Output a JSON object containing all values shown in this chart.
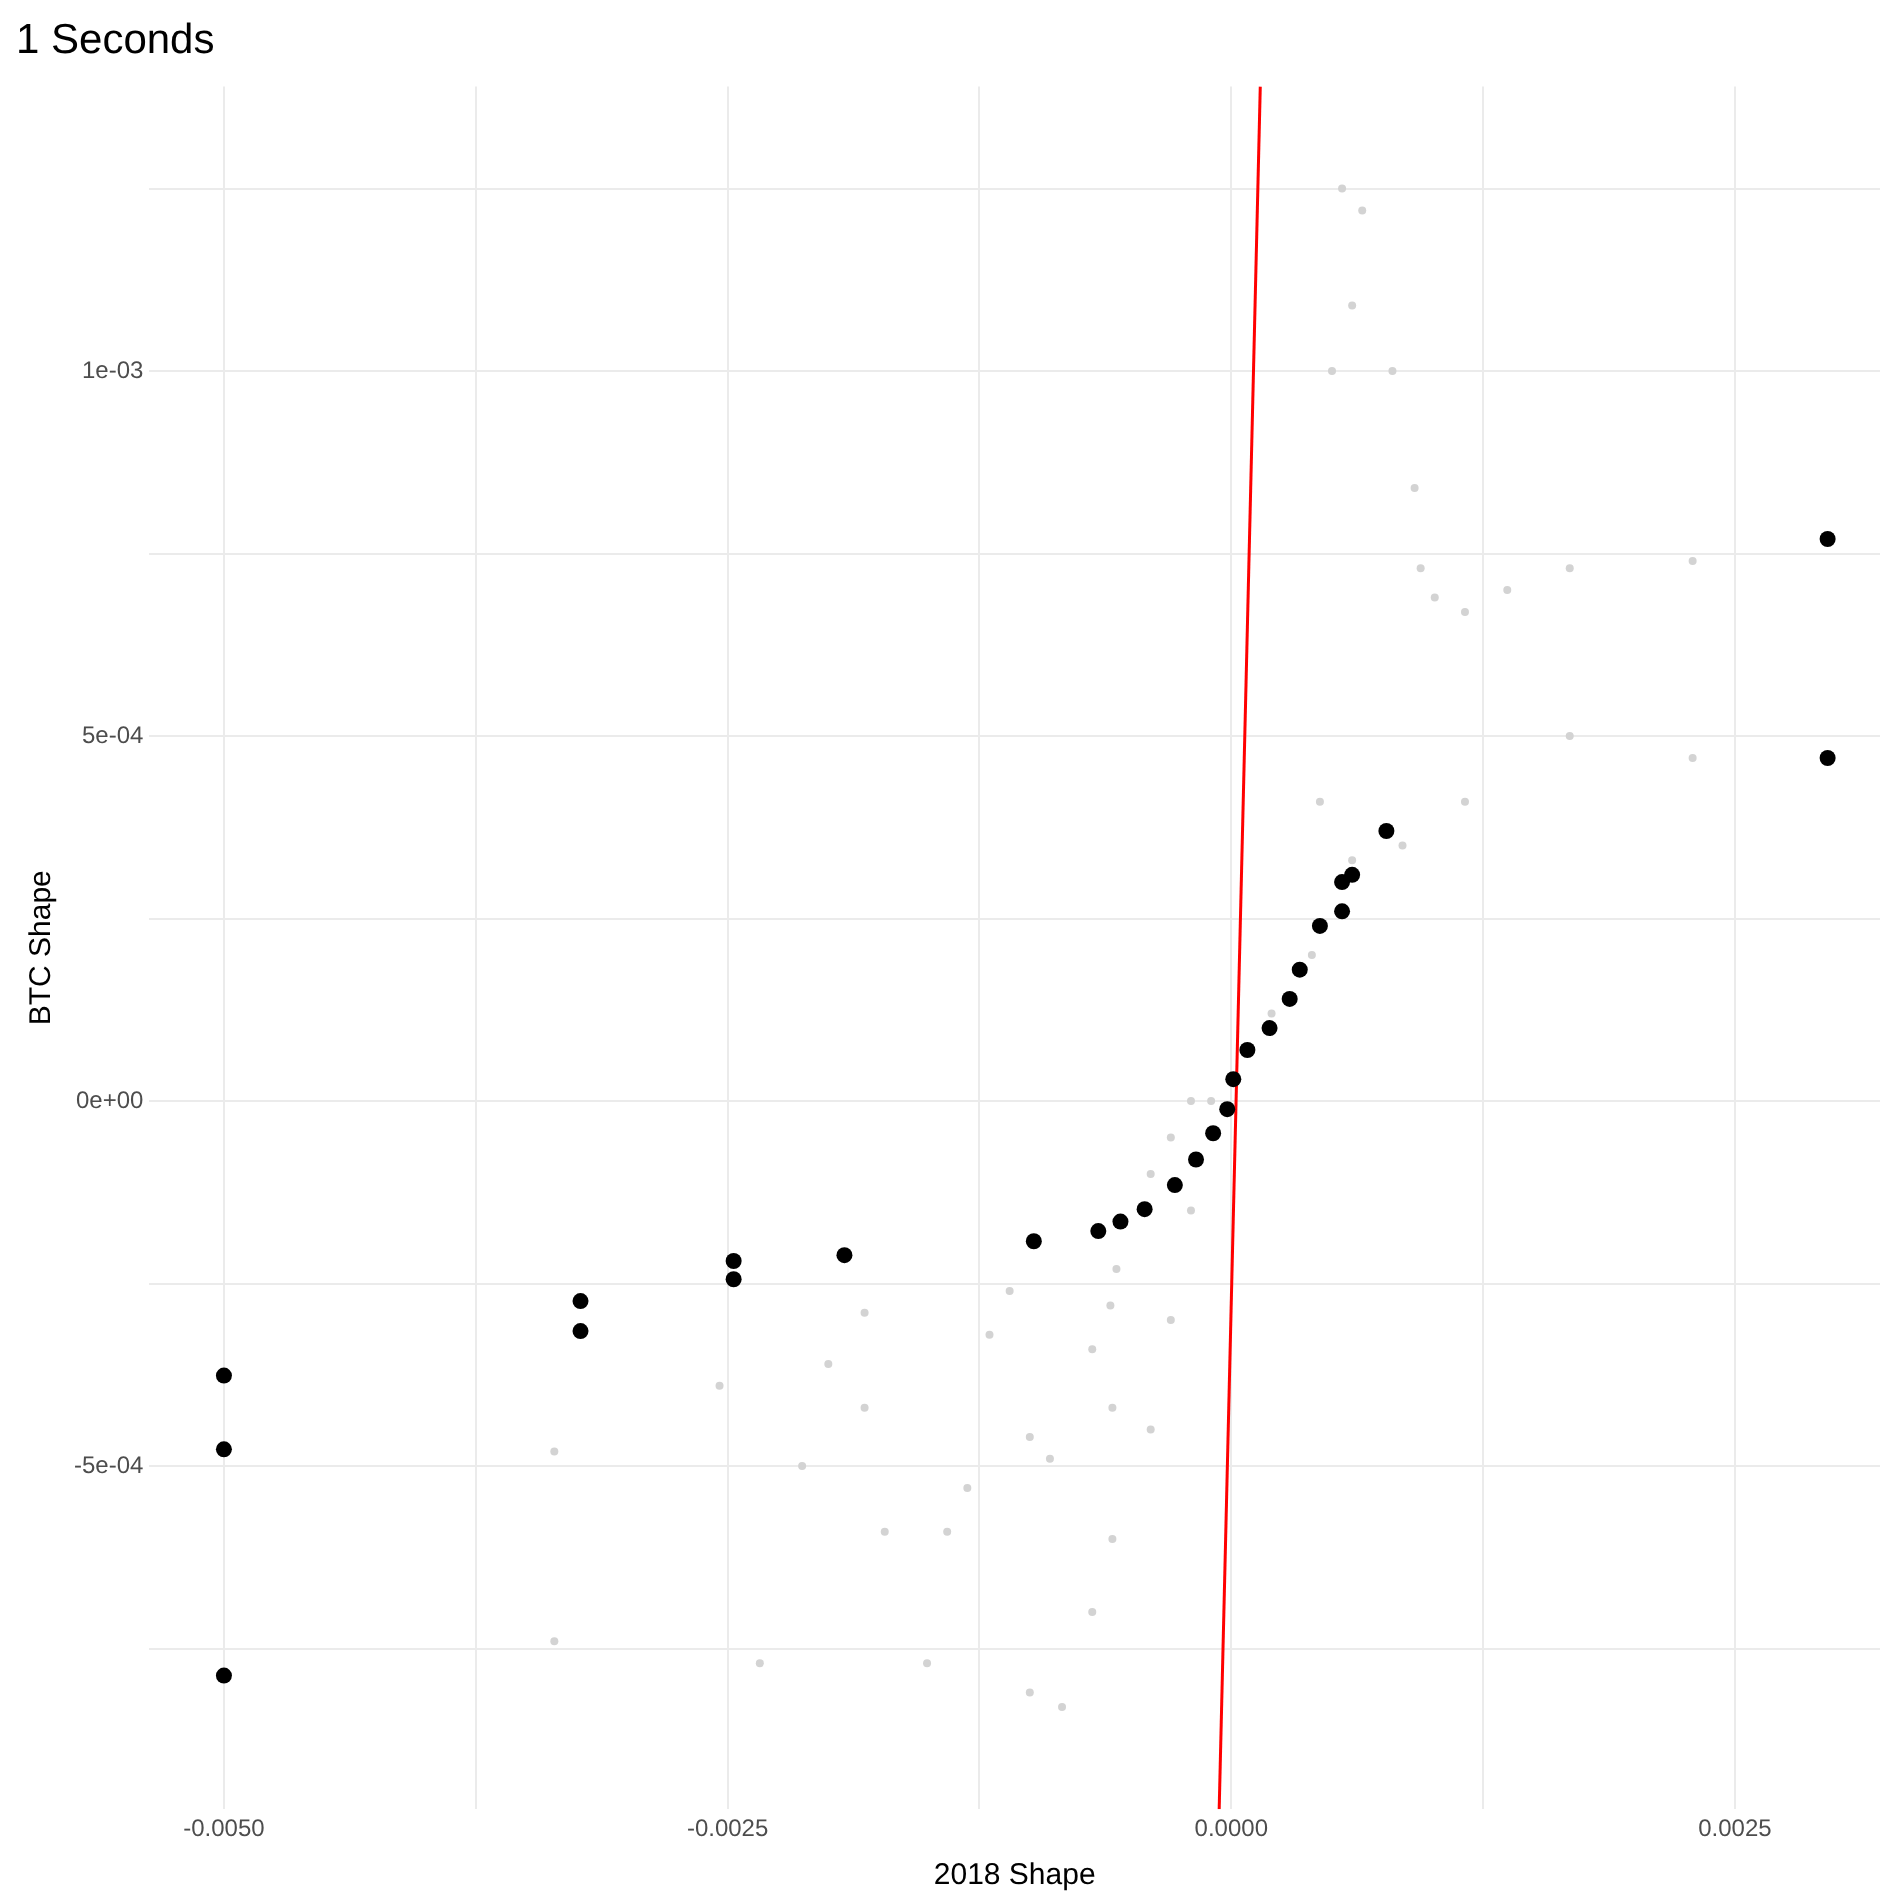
{
  "chart_data": {
    "type": "scatter",
    "title": "1 Seconds",
    "xlabel": "2018 Shape",
    "ylabel": "BTC Shape",
    "xlim": [
      -0.00537,
      0.00322
    ],
    "ylim": [
      -0.00097,
      0.00139
    ],
    "xticks": [
      {
        "value": -0.005,
        "label": "-0.0050"
      },
      {
        "value": -0.00375,
        "label": null
      },
      {
        "value": -0.0025,
        "label": "-0.0025"
      },
      {
        "value": -0.00125,
        "label": null
      },
      {
        "value": 0,
        "label": "0.0000"
      },
      {
        "value": 0.00125,
        "label": null
      },
      {
        "value": 0.0025,
        "label": "0.0025"
      }
    ],
    "yticks": [
      {
        "value": -0.00075,
        "label": null
      },
      {
        "value": -0.0005,
        "label": "-5e-04"
      },
      {
        "value": -0.00025,
        "label": null
      },
      {
        "value": 0,
        "label": "0e+00"
      },
      {
        "value": 0.00025,
        "label": null
      },
      {
        "value": 0.0005,
        "label": "5e-04"
      },
      {
        "value": 0.00075,
        "label": null
      },
      {
        "value": 0.001,
        "label": "1e-03"
      },
      {
        "value": 0.00125,
        "label": null
      }
    ],
    "grid": true,
    "legend": false,
    "marker": "circle",
    "series": [
      {
        "type": "scatter",
        "color": "#d3d3d3",
        "x": [
          0.00229,
          0.00168,
          0.00137,
          0.00116,
          0.00101,
          0.00094,
          0.00091,
          0.0008,
          0.00065,
          0.00055,
          0.0006,
          0.0005,
          0.00229,
          0.00168,
          0.00116,
          0.00085,
          0.00044,
          -0.00254,
          -0.00182,
          -0.00131,
          -0.0009,
          -0.00059,
          -0.00336,
          -0.00213,
          -0.00172,
          -0.00141,
          -0.001,
          -0.00069,
          -0.00336,
          -0.00234,
          -0.00151,
          -0.001,
          -0.00084,
          -0.00069,
          -0.00059,
          -0.00182,
          -0.0011,
          -0.00057,
          -0.002,
          -0.0012,
          -0.0006,
          -0.0004,
          -0.0003,
          -0.0002,
          -0.0004,
          -0.0003,
          -0.0002,
          -0.0001,
          0.0002,
          0.0004,
          0.0006
        ],
        "values": [
          0.00074,
          0.00073,
          0.0007,
          0.00067,
          0.00069,
          0.00073,
          0.00084,
          0.001,
          0.00122,
          0.00125,
          0.00109,
          0.001,
          0.00047,
          0.0005,
          0.00041,
          0.00035,
          0.00041,
          -0.00039,
          -0.00042,
          -0.00053,
          -0.00049,
          -0.00042,
          -0.00048,
          -0.0005,
          -0.00059,
          -0.00059,
          -0.00046,
          -0.00034,
          -0.00074,
          -0.00077,
          -0.00077,
          -0.00081,
          -0.00083,
          -0.0007,
          -0.0006,
          -0.00029,
          -0.00026,
          -0.00023,
          -0.00036,
          -0.00032,
          -0.00028,
          -0.00045,
          -0.0003,
          -0.00015,
          -0.0001,
          -5e-05,
          0,
          0,
          0.00012,
          0.0002,
          0.00033
        ]
      },
      {
        "type": "scatter",
        "color": "#000000",
        "x": [
          -0.005,
          -0.005,
          -0.005,
          -0.00323,
          -0.00323,
          -0.00247,
          -0.00247,
          -0.00192,
          -0.00098,
          -0.00066,
          -0.00055,
          -0.00043,
          -0.00028,
          -0.000175,
          -9e-05,
          -2e-05,
          1e-05,
          8e-05,
          0.00019,
          0.00029,
          0.00034,
          0.00044,
          0.00055,
          0.00055,
          0.0006,
          0.00077,
          0.00296,
          0.00296
        ],
        "values": [
          -0.000376,
          -0.000477,
          -0.000787,
          -0.000274,
          -0.000315,
          -0.000219,
          -0.000244,
          -0.000211,
          -0.000192,
          -0.000178,
          -0.000165,
          -0.000148,
          -0.000115,
          -8e-05,
          -4.4e-05,
          -1.1e-05,
          3e-05,
          7e-05,
          0.0001,
          0.00014,
          0.00018,
          0.00024,
          0.00026,
          0.0003,
          0.00031,
          0.00037,
          0.00077,
          0.00047
        ]
      },
      {
        "type": "line",
        "color": "#ff0000",
        "marker": "none",
        "x": [
          -6e-05,
          0.000144
        ],
        "values": [
          -0.00097,
          0.00139
        ]
      }
    ]
  }
}
